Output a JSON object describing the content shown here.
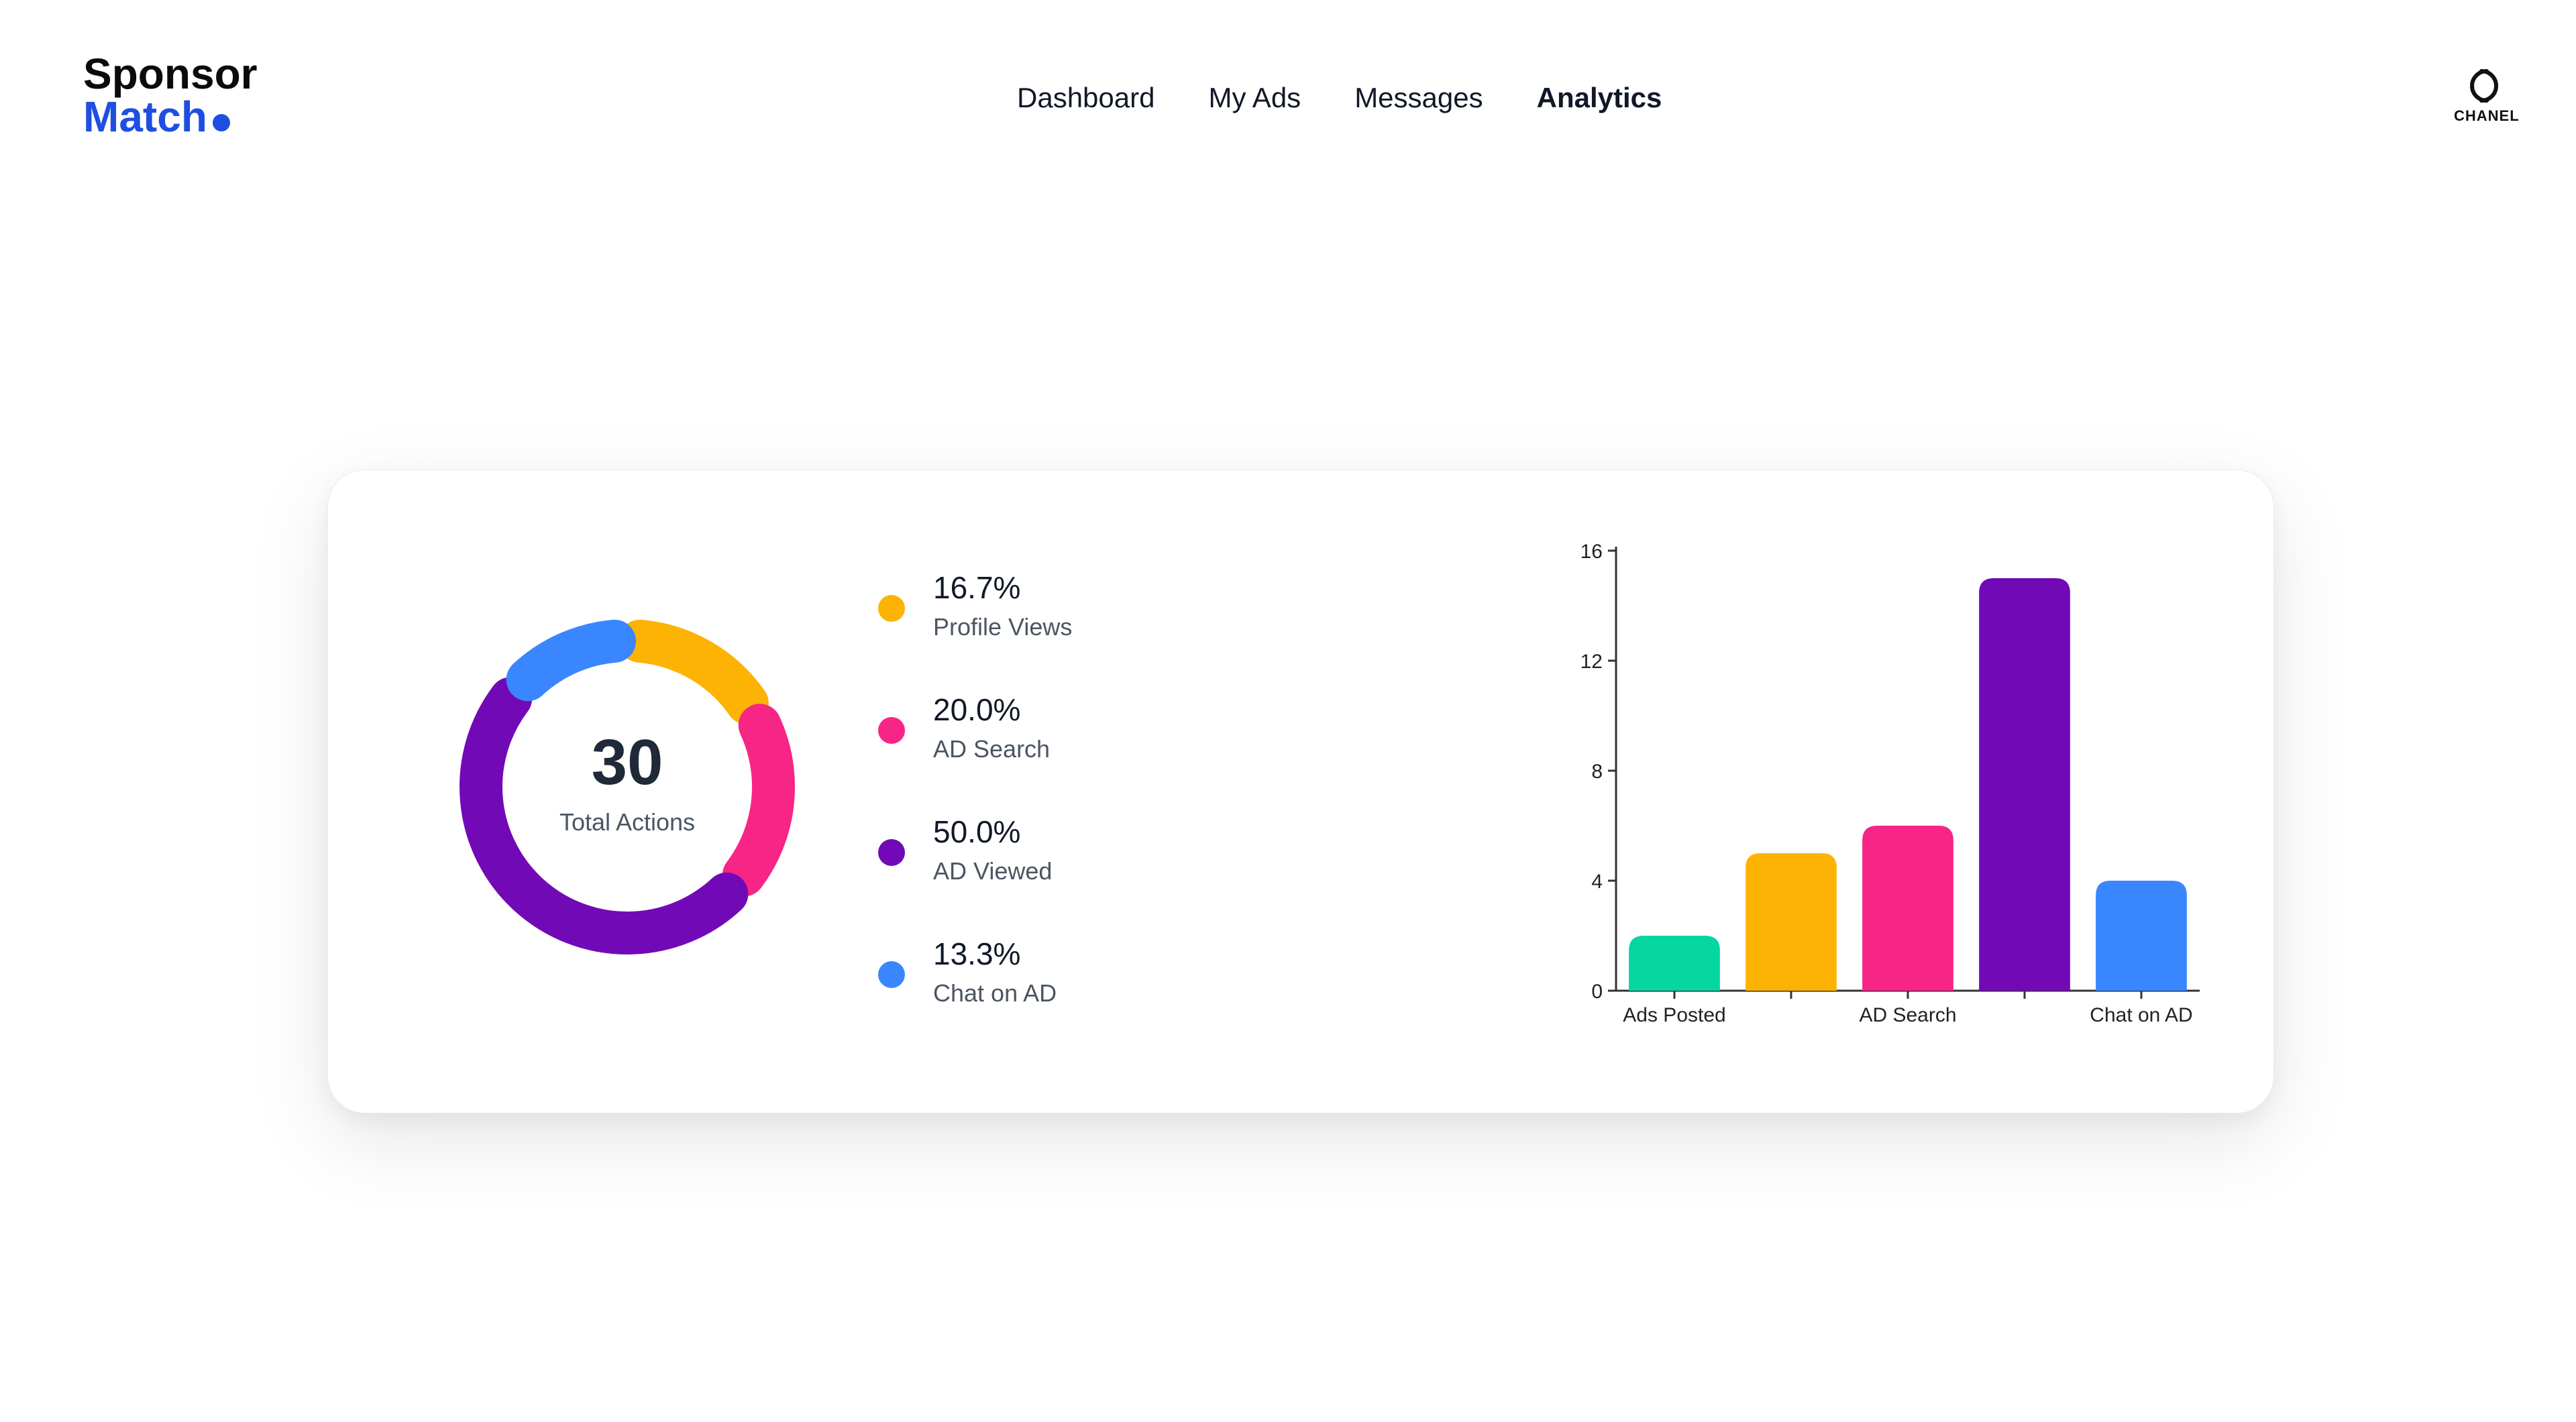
{
  "header": {
    "logo_line1": "Sponsor",
    "logo_line2": "Match",
    "nav": [
      {
        "label": "Dashboard",
        "active": false
      },
      {
        "label": "My Ads",
        "active": false
      },
      {
        "label": "Messages",
        "active": false
      },
      {
        "label": "Analytics",
        "active": true
      }
    ],
    "brand_label": "CHANEL"
  },
  "summary": {
    "total": "30",
    "total_label": "Total Actions"
  },
  "legend": [
    {
      "pct": "16.7%",
      "label": "Profile Views",
      "color": "#FDB304"
    },
    {
      "pct": "20.0%",
      "label": "AD Search",
      "color": "#F72585"
    },
    {
      "pct": "50.0%",
      "label": "AD Viewed",
      "color": "#7209B7"
    },
    {
      "pct": "13.3%",
      "label": "Chat on AD",
      "color": "#3A86FF"
    }
  ],
  "chart_data": [
    {
      "type": "pie",
      "variant": "donut",
      "categories": [
        "Profile Views",
        "AD Search",
        "AD Viewed",
        "Chat on AD"
      ],
      "values": [
        16.7,
        20.0,
        50.0,
        13.3
      ],
      "colors": [
        "#FDB304",
        "#F72585",
        "#7209B7",
        "#3A86FF"
      ],
      "center_value": "30",
      "center_label": "Total Actions"
    },
    {
      "type": "bar",
      "categories": [
        "Ads Posted",
        "Profile Views",
        "AD Search",
        "AD Viewed",
        "Chat on AD"
      ],
      "visible_tick_labels": [
        "Ads Posted",
        "AD Search",
        "Chat on AD"
      ],
      "values": [
        2,
        5,
        6,
        15,
        4
      ],
      "colors": [
        "#06D6A0",
        "#FDB304",
        "#F72585",
        "#7209B7",
        "#3A86FF"
      ],
      "yticks": [
        0,
        4,
        8,
        12,
        16
      ],
      "ylim": [
        0,
        16
      ],
      "grid": false,
      "legend": "none"
    }
  ]
}
